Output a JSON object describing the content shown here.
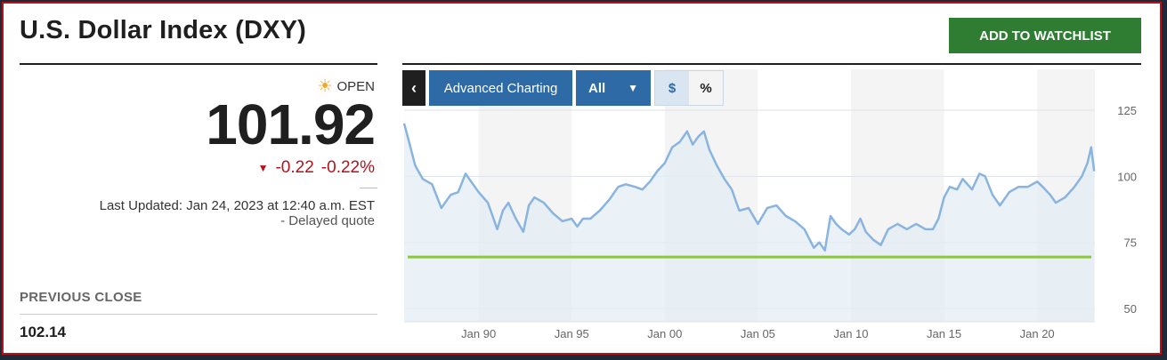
{
  "header": {
    "title": "U.S. Dollar Index (DXY)",
    "watchlist_label": "ADD TO WATCHLIST"
  },
  "quote": {
    "status_icon": "sun-icon",
    "status": "OPEN",
    "price": "101.92",
    "change_icon": "triangle-down-icon",
    "change": "-0.22",
    "change_pct": "-0.22%",
    "last_updated": "Last Updated: Jan 24, 2023 at 12:40 a.m. EST",
    "delayed": "-  Delayed quote",
    "previous_close_label": "PREVIOUS CLOSE",
    "previous_close": "102.14"
  },
  "toolbar": {
    "back_icon": "chevron-left-icon",
    "advanced_label": "Advanced Charting",
    "range_label": "All",
    "range_icon": "caret-down-icon",
    "currency_label": "$",
    "percent_label": "%"
  },
  "colors": {
    "accent_red": "#b5121b",
    "button_green": "#2e7d32",
    "toolbar_blue": "#2d6aa6",
    "line_blue": "#8ab4e0",
    "area_fill": "#e3edf6",
    "reference_green": "#8dc63f"
  },
  "chart_data": {
    "type": "area",
    "x_ticks": [
      "Jan 90",
      "Jan 95",
      "Jan 00",
      "Jan 05",
      "Jan 10",
      "Jan 15",
      "Jan 20"
    ],
    "y_ticks": [
      125,
      100,
      75,
      50
    ],
    "ylim": [
      45,
      127
    ],
    "xlim": [
      1986.0,
      2023.1
    ],
    "grid": true,
    "reference_line": 69.5,
    "series": [
      {
        "x": [
          1986.0,
          1986.3,
          1986.6,
          1987.0,
          1987.5,
          1988.0,
          1988.5,
          1988.9,
          1989.3,
          1989.6,
          1990.0,
          1990.5,
          1991.0,
          1991.3,
          1991.6,
          1992.0,
          1992.4,
          1992.7,
          1993.0,
          1993.5,
          1994.0,
          1994.5,
          1995.0,
          1995.3,
          1995.6,
          1996.0,
          1996.5,
          1997.0,
          1997.5,
          1997.9,
          1998.4,
          1998.8,
          1999.2,
          1999.6,
          2000.0,
          2000.4,
          2000.8,
          2001.2,
          2001.5,
          2001.8,
          2002.1,
          2002.4,
          2002.8,
          2003.2,
          2003.6,
          2004.0,
          2004.5,
          2005.0,
          2005.5,
          2006.0,
          2006.5,
          2007.0,
          2007.5,
          2008.0,
          2008.3,
          2008.6,
          2008.9,
          2009.2,
          2009.5,
          2009.9,
          2010.2,
          2010.5,
          2010.8,
          2011.2,
          2011.6,
          2012.0,
          2012.5,
          2013.0,
          2013.5,
          2014.0,
          2014.4,
          2014.7,
          2015.0,
          2015.3,
          2015.7,
          2016.0,
          2016.5,
          2016.9,
          2017.2,
          2017.6,
          2018.0,
          2018.5,
          2019.0,
          2019.5,
          2020.0,
          2020.3,
          2020.7,
          2021.0,
          2021.5,
          2022.0,
          2022.4,
          2022.7,
          2022.9,
          2023.06
        ],
        "values": [
          120,
          112,
          104,
          99,
          97,
          88,
          93,
          94,
          101,
          98,
          94,
          90,
          80,
          87,
          90,
          84,
          79,
          89,
          92,
          90,
          86,
          83,
          84,
          81,
          84,
          84,
          87,
          91,
          96,
          97,
          96,
          95,
          98,
          102,
          105,
          111,
          113,
          117,
          112,
          115,
          117,
          110,
          104,
          99,
          95,
          87,
          88,
          82,
          88,
          89,
          85,
          83,
          80,
          73,
          75,
          72,
          85,
          82,
          80,
          78,
          80,
          84,
          79,
          76,
          74,
          80,
          82,
          80,
          82,
          80,
          80,
          84,
          92,
          96,
          95,
          99,
          95,
          101,
          100,
          93,
          89,
          94,
          96,
          96,
          98,
          96,
          93,
          90,
          92,
          96,
          100,
          105,
          111,
          101.92
        ]
      }
    ]
  }
}
